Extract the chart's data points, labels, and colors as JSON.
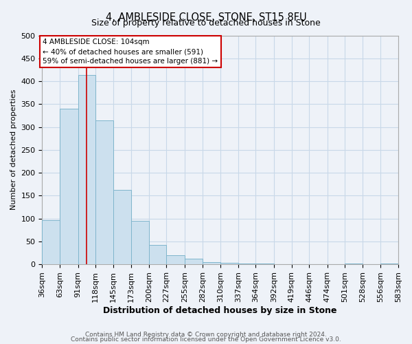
{
  "title": "4, AMBLESIDE CLOSE, STONE, ST15 8FU",
  "subtitle": "Size of property relative to detached houses in Stone",
  "xlabel": "Distribution of detached houses by size in Stone",
  "ylabel": "Number of detached properties",
  "bar_color": "#cce0ee",
  "bar_edge_color": "#7fb5cc",
  "bin_edges": [
    36,
    63,
    91,
    118,
    145,
    173,
    200,
    227,
    255,
    282,
    310,
    337,
    364,
    392,
    419,
    446,
    474,
    501,
    528,
    556,
    583
  ],
  "bar_heights": [
    97,
    340,
    413,
    314,
    163,
    95,
    42,
    19,
    12,
    5,
    3,
    2,
    1,
    0,
    0,
    0,
    0,
    2,
    0,
    2
  ],
  "tick_labels": [
    "36sqm",
    "63sqm",
    "91sqm",
    "118sqm",
    "145sqm",
    "173sqm",
    "200sqm",
    "227sqm",
    "255sqm",
    "282sqm",
    "310sqm",
    "337sqm",
    "364sqm",
    "392sqm",
    "419sqm",
    "446sqm",
    "474sqm",
    "501sqm",
    "528sqm",
    "556sqm",
    "583sqm"
  ],
  "property_line_x": 104,
  "property_line_color": "#cc0000",
  "ylim": [
    0,
    500
  ],
  "yticks": [
    0,
    50,
    100,
    150,
    200,
    250,
    300,
    350,
    400,
    450,
    500
  ],
  "annotation_text": "4 AMBLESIDE CLOSE: 104sqm\n← 40% of detached houses are smaller (591)\n59% of semi-detached houses are larger (881) →",
  "annotation_box_color": "#ffffff",
  "annotation_box_edge": "#cc0000",
  "footer_line1": "Contains HM Land Registry data © Crown copyright and database right 2024.",
  "footer_line2": "Contains public sector information licensed under the Open Government Licence v3.0.",
  "grid_color": "#c8d8e8",
  "background_color": "#eef2f8"
}
